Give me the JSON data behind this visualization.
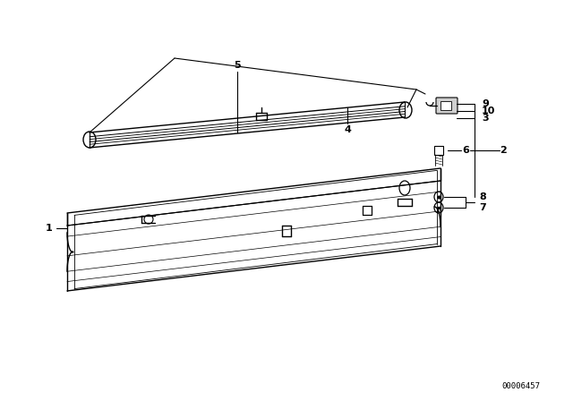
{
  "bg_color": "#ffffff",
  "line_color": "#000000",
  "figsize": [
    6.4,
    4.48
  ],
  "dpi": 100,
  "diagram_code": "00006457"
}
